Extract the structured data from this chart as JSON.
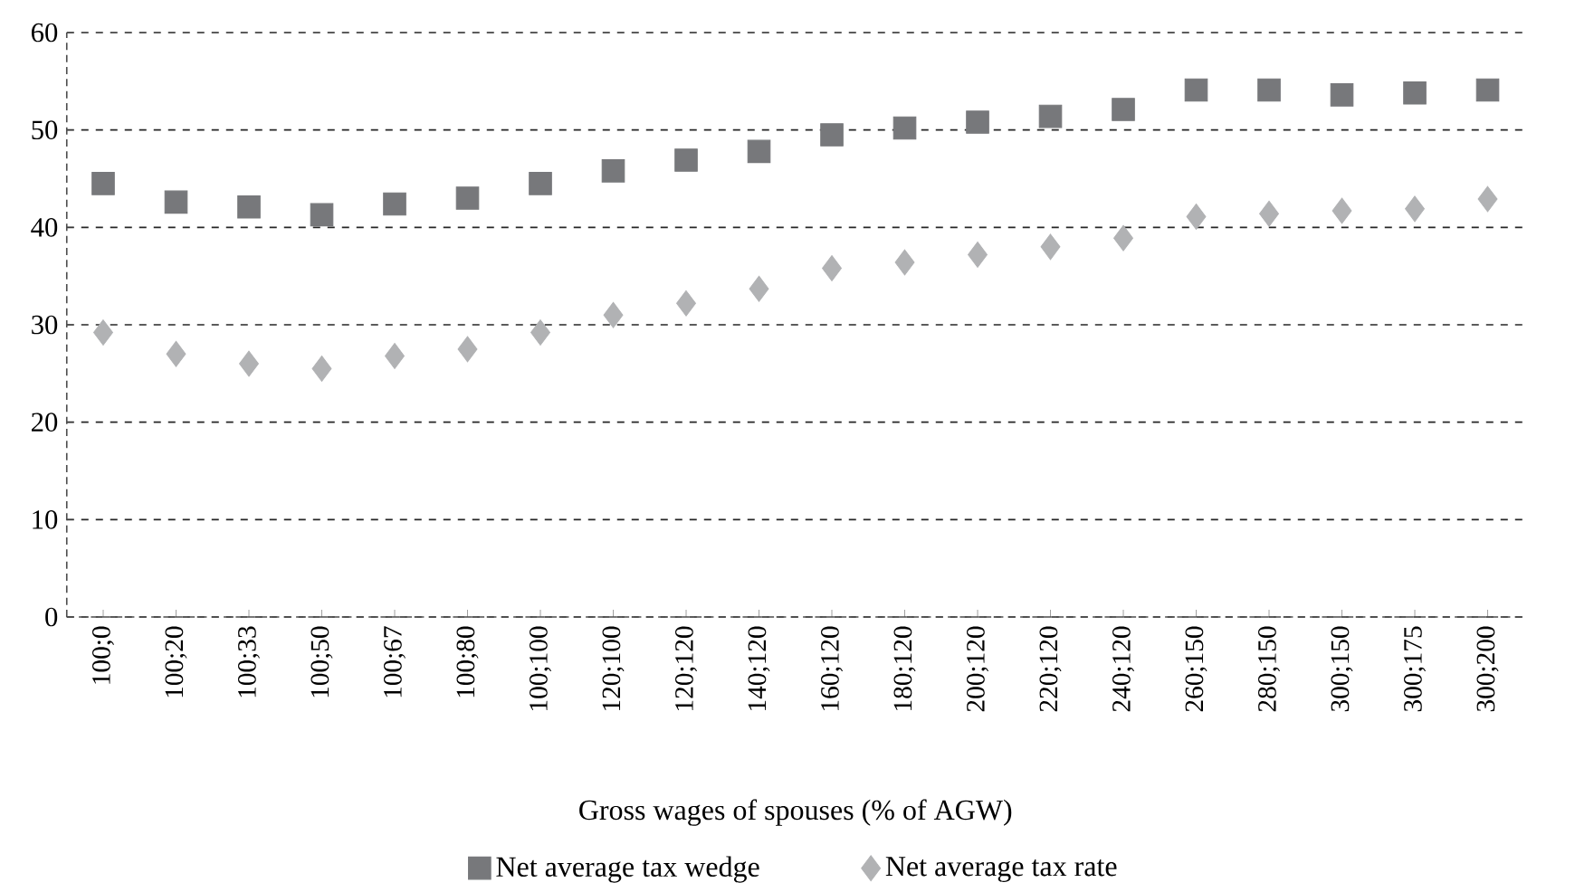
{
  "chart_data": {
    "type": "scatter",
    "xlabel": "Gross wages of spouses (% of AGW)",
    "categories": [
      "100;0",
      "100;20",
      "100;33",
      "100;50",
      "100;67",
      "100;80",
      "100;100",
      "120;100",
      "120;120",
      "140;120",
      "160;120",
      "180;120",
      "200;120",
      "220;120",
      "240;120",
      "260;150",
      "280;150",
      "300;150",
      "300;175",
      "300;200"
    ],
    "series": [
      {
        "name": "Net average tax wedge",
        "color": "#77787b",
        "marker": "square",
        "values": [
          44.5,
          42.6,
          42.1,
          41.3,
          42.4,
          43.0,
          44.5,
          45.8,
          46.9,
          47.8,
          49.5,
          50.2,
          50.8,
          51.4,
          52.1,
          54.1,
          54.1,
          53.6,
          53.8,
          54.1
        ]
      },
      {
        "name": "Net average tax rate",
        "color": "#b1b2b4",
        "marker": "diamond",
        "values": [
          29.2,
          27.0,
          26.0,
          25.5,
          26.8,
          27.5,
          29.2,
          31.0,
          32.2,
          33.7,
          35.8,
          36.4,
          37.2,
          38.0,
          38.9,
          41.1,
          41.4,
          41.7,
          41.9,
          42.9
        ]
      }
    ],
    "ylim": [
      0,
      60
    ],
    "yticks": [
      0,
      10,
      20,
      30,
      40,
      50,
      60
    ],
    "grid": "y",
    "legend": "bottom"
  }
}
